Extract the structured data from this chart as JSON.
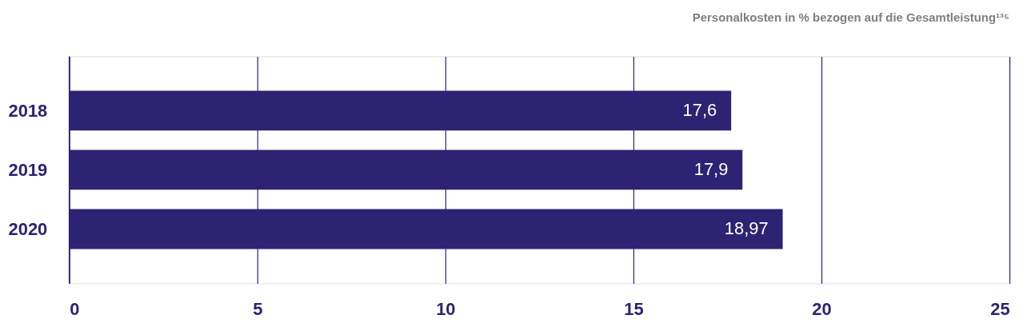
{
  "chart_data": {
    "type": "bar",
    "orientation": "horizontal",
    "title": "Personalkosten in % bezogen auf die Gesamtleistung¹³⁵",
    "categories": [
      "2018",
      "2019",
      "2020"
    ],
    "values": [
      17.6,
      17.9,
      18.97
    ],
    "value_labels": [
      "17,6",
      "17,9",
      "18,97"
    ],
    "color": "#2e2372",
    "xlim": [
      0,
      25
    ],
    "xticks": [
      0,
      5,
      10,
      15,
      20,
      25
    ],
    "grid": "x"
  }
}
